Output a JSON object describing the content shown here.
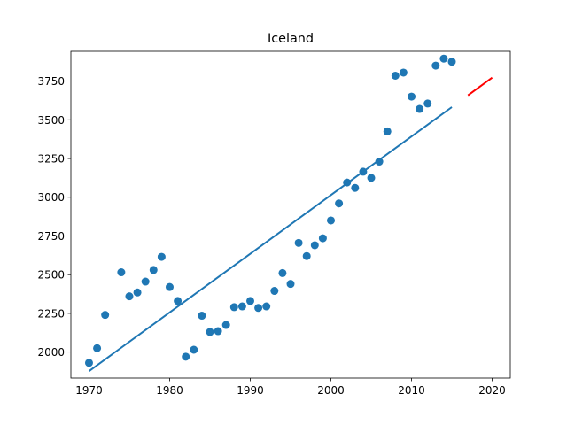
{
  "chart_data": {
    "type": "scatter",
    "title": "Iceland",
    "xlabel": "",
    "ylabel": "",
    "xlim": [
      1967.75,
      2022.25
    ],
    "ylim": [
      1832,
      3942
    ],
    "xticks": [
      1970,
      1980,
      1990,
      2000,
      2010,
      2020
    ],
    "yticks": [
      2000,
      2250,
      2500,
      2750,
      3000,
      3250,
      3500,
      3750
    ],
    "xtick_labels": [
      "1970",
      "1980",
      "1990",
      "2000",
      "2010",
      "2020"
    ],
    "ytick_labels": [
      "2000",
      "2250",
      "2500",
      "2750",
      "3000",
      "3250",
      "3500",
      "3750"
    ],
    "grid": false,
    "colors": {
      "points": "#1f77b4",
      "fit": "#1f77b4",
      "forecast": "#ff0000"
    },
    "series": [
      {
        "kind": "points",
        "x": [
          1970,
          1971,
          1972,
          1974,
          1975,
          1976,
          1977,
          1978,
          1979,
          1980,
          1981,
          1982,
          1983,
          1984,
          1985,
          1986,
          1987,
          1988,
          1989,
          1990,
          1991,
          1992,
          1993,
          1994,
          1995,
          1996,
          1997,
          1998,
          1999,
          2000,
          2001,
          2002,
          2003,
          2004,
          2005,
          2006,
          2007,
          2008,
          2009,
          2010,
          2011,
          2012,
          2013,
          2014,
          2015
        ],
        "y": [
          1930,
          2025,
          2240,
          2515,
          2360,
          2385,
          2455,
          2530,
          2615,
          2420,
          2330,
          1970,
          2015,
          2235,
          2130,
          2135,
          2175,
          2290,
          2295,
          2330,
          2285,
          2295,
          2395,
          2510,
          2440,
          2705,
          2620,
          2690,
          2735,
          2850,
          2960,
          3095,
          3060,
          3165,
          3125,
          3230,
          3425,
          3785,
          3805,
          3650,
          3570,
          3605,
          3850,
          3895,
          3875
        ]
      },
      {
        "kind": "line",
        "x": [
          1970,
          2015
        ],
        "y": [
          1877,
          3582
        ]
      },
      {
        "kind": "line",
        "x": [
          2017,
          2020
        ],
        "y": [
          3658,
          3772
        ]
      }
    ]
  }
}
